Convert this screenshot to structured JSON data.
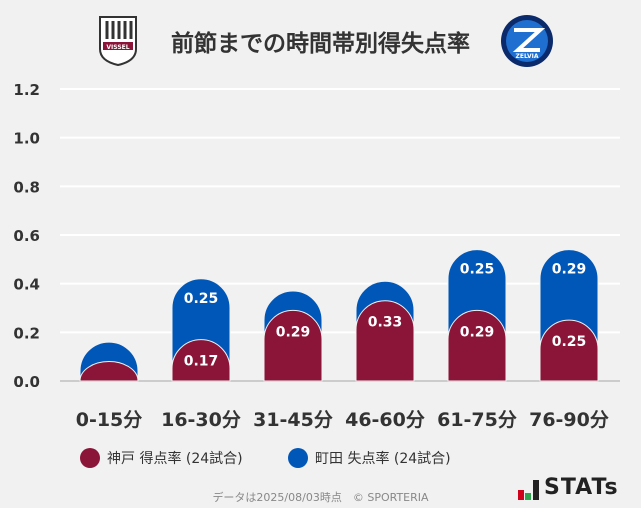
{
  "header": {
    "title": "前節までの時間帯別得失点率",
    "left_logo": "VISSEL",
    "right_logo": "ZELVIA"
  },
  "colors": {
    "kobe": "#8a1538",
    "machida": "#0057b8",
    "grid": "#ffffff",
    "axis": "#cccccc"
  },
  "chart_data": {
    "type": "bar",
    "stacked": true,
    "categories": [
      "0-15分",
      "16-30分",
      "31-45分",
      "46-60分",
      "61-75分",
      "76-90分"
    ],
    "series": [
      {
        "name": "神戸 得点率 (24試合)",
        "values": [
          0.08,
          0.17,
          0.29,
          0.33,
          0.29,
          0.25
        ],
        "labels": [
          "",
          "0.17",
          "0.29",
          "0.33",
          "0.29",
          "0.25"
        ]
      },
      {
        "name": "町田 失点率 (24試合)",
        "values": [
          0.08,
          0.25,
          0.08,
          0.08,
          0.25,
          0.29
        ],
        "labels": [
          "",
          "0.25",
          "",
          "",
          "0.25",
          "0.29"
        ]
      }
    ],
    "yticks": [
      "0.0",
      "0.2",
      "0.4",
      "0.6",
      "0.8",
      "1.0",
      "1.2"
    ],
    "ylim": [
      0,
      1.2
    ],
    "grid": true,
    "legend": "bottom"
  },
  "legend": {
    "kobe": "神戸 得点率 (24試合)",
    "machida": "町田 失点率 (24試合)"
  },
  "footer": {
    "note": "データは2025/08/03時点　© SPORTERIA",
    "brand": "STATs"
  }
}
